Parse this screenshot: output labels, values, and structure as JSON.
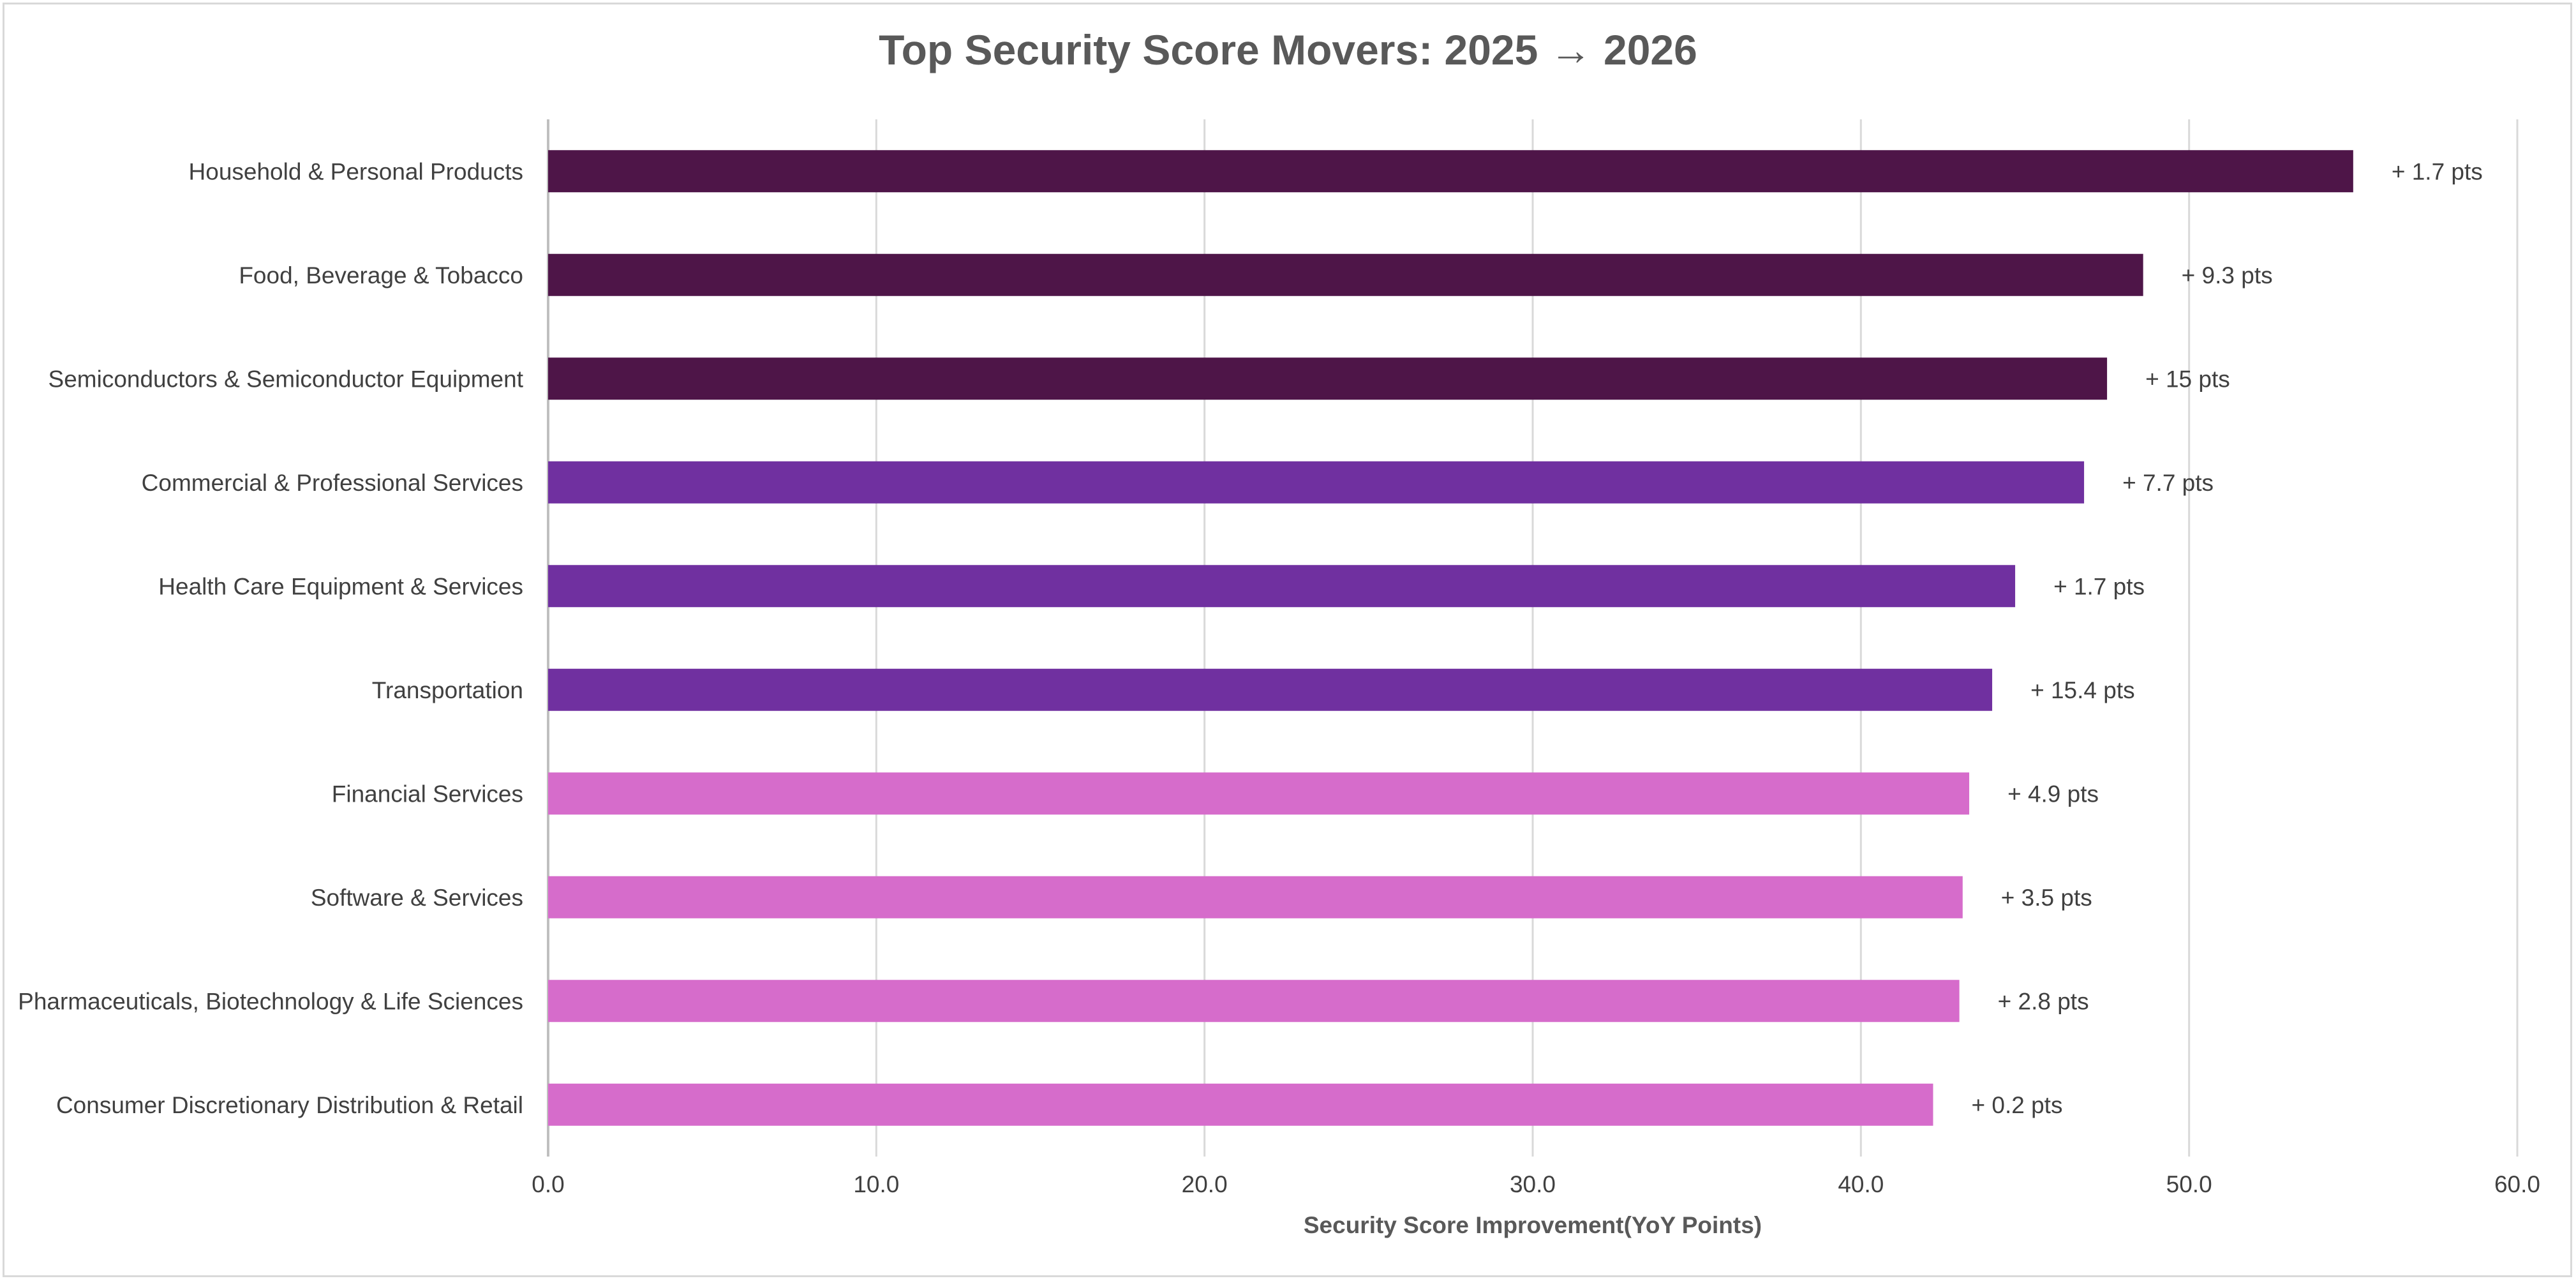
{
  "chart_data": {
    "type": "bar",
    "orientation": "horizontal",
    "title": "Top Security Score Movers: 2025 → 2026",
    "xlabel": "Security Score Improvement(YoY Points)",
    "ylabel": "",
    "xlim": [
      0,
      60
    ],
    "x_ticks": [
      "0.0",
      "10.0",
      "20.0",
      "30.0",
      "40.0",
      "50.0",
      "60.0"
    ],
    "grid": true,
    "categories": [
      "Household & Personal Products",
      "Food, Beverage & Tobacco",
      "Semiconductors & Semiconductor Equipment",
      "Commercial & Professional Services",
      "Health Care Equipment & Services",
      "Transportation",
      "Financial Services",
      "Software & Services",
      "Pharmaceuticals, Biotechnology & Life Sciences",
      "Consumer Discretionary Distribution & Retail"
    ],
    "values": [
      55.0,
      48.6,
      47.5,
      46.8,
      44.7,
      44.0,
      43.3,
      43.1,
      43.0,
      42.2
    ],
    "data_labels": [
      "+ 1.7 pts",
      "+ 9.3 pts",
      "+ 15 pts",
      "+ 7.7 pts",
      "+ 1.7 pts",
      "+ 15.4 pts",
      "+ 4.9 pts",
      "+ 3.5 pts",
      "+ 2.8 pts",
      "+ 0.2 pts"
    ],
    "bar_colors": [
      "#4e1548",
      "#4e1548",
      "#4e1548",
      "#7030a0",
      "#7030a0",
      "#7030a0",
      "#d66ccb",
      "#d66ccb",
      "#d66ccb",
      "#d66ccb"
    ]
  }
}
